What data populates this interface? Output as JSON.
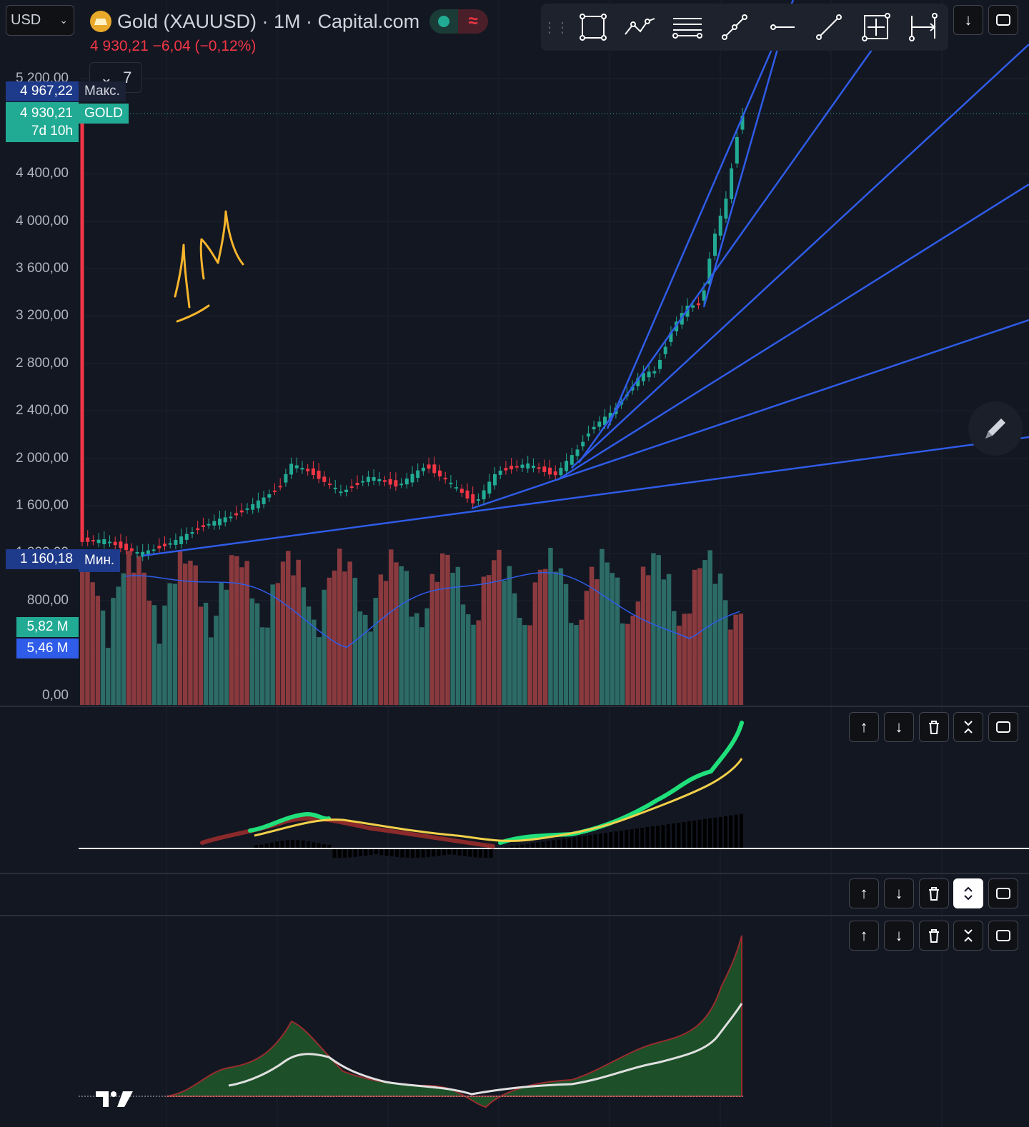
{
  "header": {
    "currency": "USD",
    "title": "Gold (XAUUSD) · 1M · Capital.com",
    "live_indicator": "live",
    "delay_indicator": "≈",
    "price_line": "4 930,21  −6,04 (−0,12%)",
    "collapse_count": "7"
  },
  "price_badges": {
    "max_value": "4 967,22",
    "max_label": "Макс.",
    "last_value": "4 930,21",
    "countdown": "7d 10h",
    "symbol_tag": "GOLD",
    "min_value": "1 160,18",
    "min_label": "Мин.",
    "volume_value": "5,82 M",
    "volume_ma_value": "5,46 M"
  },
  "price_axis": {
    "labels": [
      "5 200,00",
      "4 400,00",
      "4 000,00",
      "3 600,00",
      "3 200,00",
      "2 800,00",
      "2 400,00",
      "2 000,00",
      "1 600,00",
      "1 200,00",
      "800,00",
      "0,00"
    ]
  },
  "drawing_toolbar": {
    "tools": [
      "rectangle-icon",
      "path-icon",
      "parallel-channel-icon",
      "trend-line-icon",
      "horizontal-ray-icon",
      "line-icon",
      "crosshair-box-icon",
      "date-range-icon"
    ]
  },
  "annotation": "1M",
  "pane_controls": [
    "move-up-icon",
    "move-down-icon",
    "delete-icon",
    "collapse-icon",
    "maximize-icon"
  ],
  "colors": {
    "background": "#131722",
    "up": "#22ab94",
    "down": "#f23645",
    "fan": "#2f5ce8",
    "annotation": "#f7b52c",
    "macd_fast": "#1fe07a",
    "macd_slow": "#f2d04a"
  }
}
